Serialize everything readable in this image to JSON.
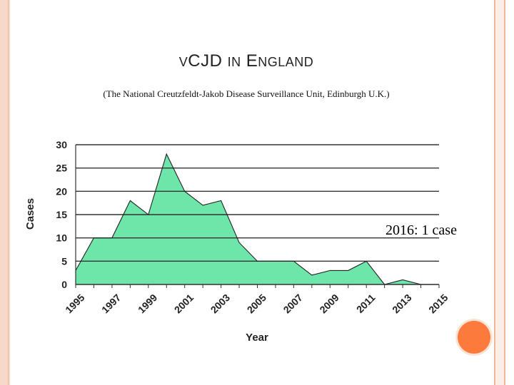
{
  "slide": {
    "title_prefix": "V",
    "title_main": "CJD",
    "title_in": "IN",
    "title_e": "E",
    "title_rest": "NGLAND",
    "subtitle": "(The National Creutzfeldt-Jakob Disease Surveillance Unit, Edinburgh U.K.)",
    "note": "2016: 1 case"
  },
  "colors": {
    "area_fill": "#6ee6aa",
    "area_stroke": "#222222",
    "grid": "#333333",
    "accent_dot": "#fb7a3c"
  },
  "chart_data": {
    "type": "area",
    "x": [
      1995,
      1996,
      1997,
      1998,
      1999,
      2000,
      2001,
      2002,
      2003,
      2004,
      2005,
      2006,
      2007,
      2008,
      2009,
      2010,
      2011,
      2012,
      2013,
      2014,
      2015
    ],
    "values": [
      3,
      10,
      10,
      18,
      15,
      28,
      20,
      17,
      18,
      9,
      5,
      5,
      5,
      2,
      3,
      3,
      5,
      0,
      1,
      0,
      0
    ],
    "xticks": [
      1995,
      1997,
      1999,
      2001,
      2003,
      2005,
      2007,
      2009,
      2011,
      2013,
      2015
    ],
    "yticks": [
      0,
      5,
      10,
      15,
      20,
      25,
      30
    ],
    "xlabel": "Year",
    "ylabel": "Cases",
    "xlim": [
      1995,
      2015
    ],
    "ylim": [
      0,
      30
    ],
    "grid": "horizontal"
  }
}
